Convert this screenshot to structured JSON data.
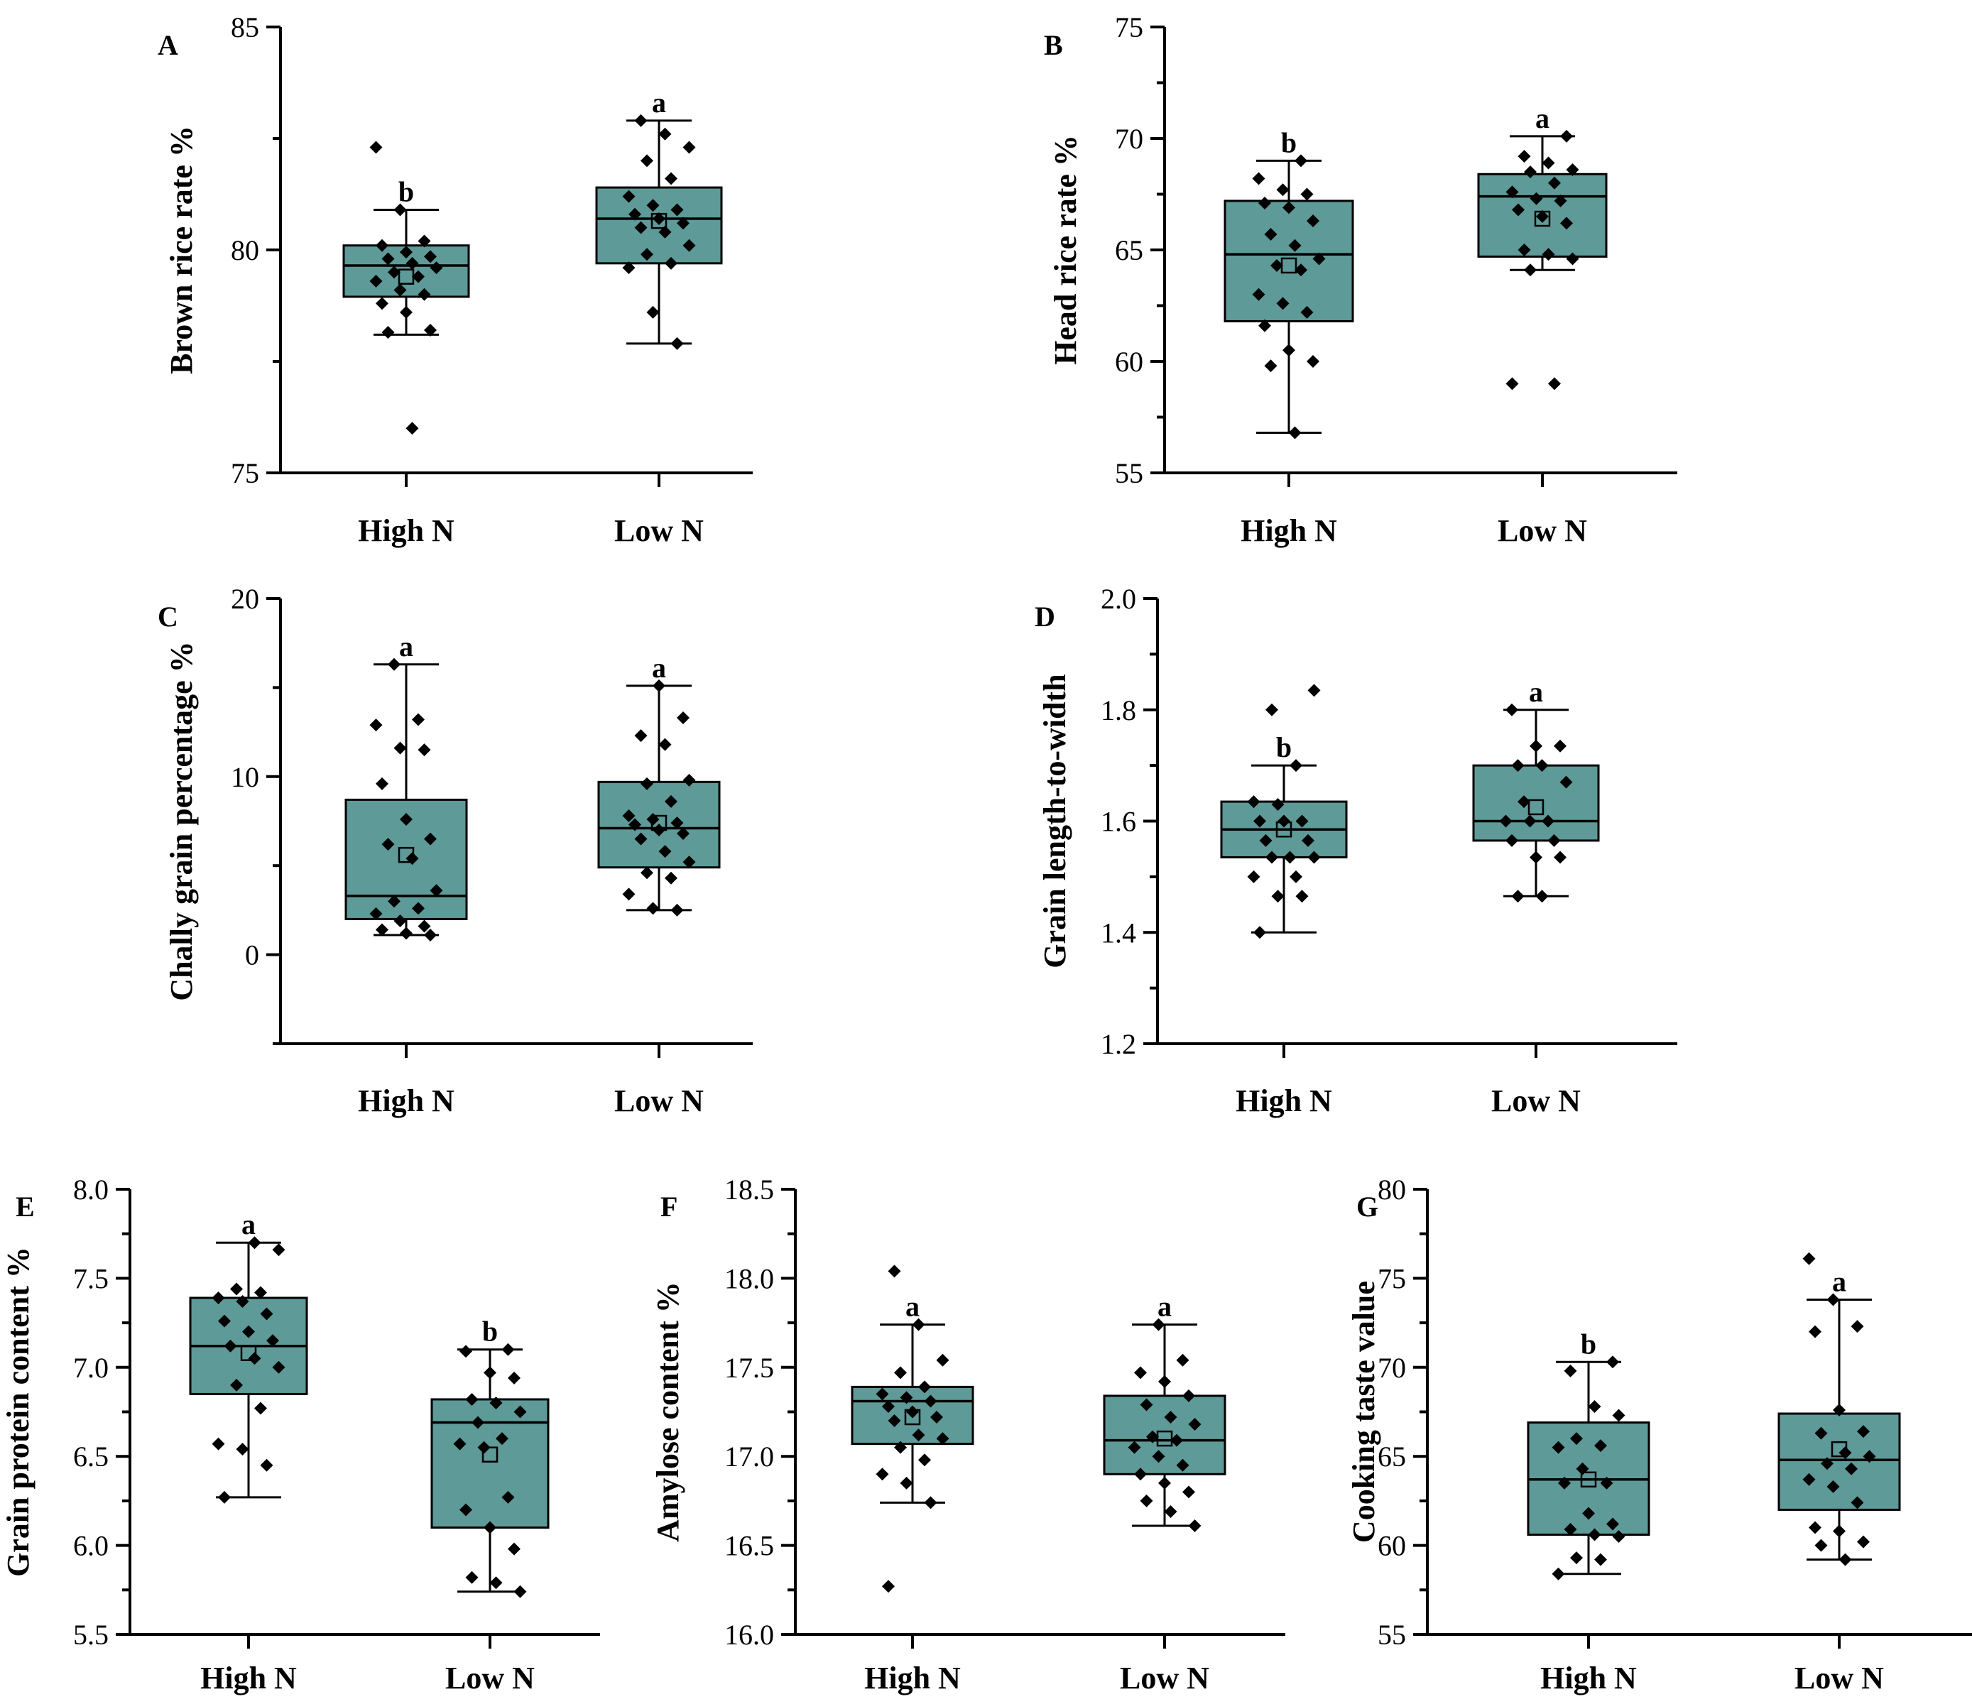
{
  "style": {
    "box_fill": "#5e9a98",
    "line_color": "#000000",
    "point_color": "#000000"
  },
  "chart_data": [
    {
      "type": "box",
      "panel": "A",
      "ylabel": "Brown rice rate  %",
      "ylim": [
        75,
        85
      ],
      "yticks": [
        75,
        80,
        85
      ],
      "ytick_labels": [
        "75",
        "80",
        "85"
      ],
      "minor_ticks": 1,
      "categories": [
        "High N",
        "Low N"
      ],
      "boxes": [
        {
          "name": "High N",
          "whisker_low": 78.1,
          "q1": 78.95,
          "median": 79.65,
          "q3": 80.1,
          "whisker_high": 80.9,
          "mean": 79.4,
          "sig": "b",
          "points": [
            82.3,
            80.9,
            80.2,
            80.1,
            79.95,
            79.85,
            79.8,
            79.7,
            79.6,
            79.5,
            79.4,
            79.3,
            79.1,
            79.0,
            78.8,
            78.6,
            78.2,
            78.15,
            76.0
          ]
        },
        {
          "name": "Low N",
          "whisker_low": 77.9,
          "q1": 79.7,
          "median": 80.7,
          "q3": 81.4,
          "whisker_high": 82.9,
          "mean": 80.65,
          "sig": "a",
          "points": [
            82.9,
            82.6,
            82.3,
            82.0,
            81.6,
            81.2,
            81.0,
            80.9,
            80.8,
            80.7,
            80.6,
            80.5,
            80.4,
            80.1,
            79.9,
            79.7,
            79.6,
            78.6,
            77.9
          ]
        }
      ]
    },
    {
      "type": "box",
      "panel": "B",
      "ylabel": "Head rice rate %",
      "ylim": [
        55,
        75
      ],
      "yticks": [
        55,
        60,
        65,
        70,
        75
      ],
      "ytick_labels": [
        "55",
        "60",
        "65",
        "70",
        "75"
      ],
      "minor_ticks": 1,
      "categories": [
        "High N",
        "Low N"
      ],
      "boxes": [
        {
          "name": "High N",
          "whisker_low": 56.8,
          "q1": 61.8,
          "median": 64.8,
          "q3": 67.2,
          "whisker_high": 69.0,
          "mean": 64.3,
          "sig": "b",
          "points": [
            69.0,
            68.2,
            67.7,
            67.5,
            67.1,
            66.9,
            66.3,
            65.7,
            65.2,
            64.6,
            64.3,
            64.1,
            63.0,
            62.6,
            62.2,
            61.6,
            60.5,
            60.0,
            59.8,
            56.8
          ]
        },
        {
          "name": "Low N",
          "whisker_low": 64.1,
          "q1": 64.7,
          "median": 67.4,
          "q3": 68.4,
          "whisker_high": 70.1,
          "mean": 66.4,
          "sig": "a",
          "points": [
            70.1,
            69.2,
            68.9,
            68.6,
            68.5,
            68.0,
            67.6,
            67.3,
            67.2,
            66.8,
            66.5,
            66.2,
            65.0,
            64.8,
            64.6,
            64.1,
            59.0,
            59.0
          ]
        }
      ]
    },
    {
      "type": "box",
      "panel": "C",
      "ylabel": "Chally grain percentage  %",
      "ylim": [
        -5,
        20
      ],
      "yticks": [
        0,
        10,
        20
      ],
      "ytick_labels": [
        "0",
        "10",
        "20"
      ],
      "minor_ticks": 1,
      "categories": [
        "High N",
        "Low N"
      ],
      "boxes": [
        {
          "name": "High N",
          "whisker_low": 1.1,
          "q1": 2.0,
          "median": 3.3,
          "q3": 8.7,
          "whisker_high": 16.3,
          "mean": 5.6,
          "sig": "a",
          "points": [
            16.3,
            13.2,
            12.9,
            11.6,
            11.5,
            9.6,
            7.6,
            6.5,
            6.2,
            5.4,
            3.6,
            3.0,
            2.6,
            2.3,
            1.9,
            1.6,
            1.4,
            1.2,
            1.1
          ]
        },
        {
          "name": "Low N",
          "whisker_low": 2.5,
          "q1": 4.9,
          "median": 7.1,
          "q3": 9.7,
          "whisker_high": 15.1,
          "mean": 7.4,
          "sig": "a",
          "points": [
            15.1,
            13.3,
            12.3,
            11.8,
            9.8,
            9.6,
            8.6,
            7.8,
            7.6,
            7.4,
            7.3,
            7.0,
            6.8,
            6.5,
            5.8,
            5.2,
            4.6,
            4.3,
            3.4,
            2.6,
            2.5
          ]
        }
      ]
    },
    {
      "type": "box",
      "panel": "D",
      "ylabel": "Grain length-to-width",
      "ylim": [
        1.2,
        2.0
      ],
      "yticks": [
        1.2,
        1.4,
        1.6,
        1.8,
        2.0
      ],
      "ytick_labels": [
        "1.2",
        "1.4",
        "1.6",
        "1.8",
        "2.0"
      ],
      "minor_ticks": 1,
      "categories": [
        "High N",
        "Low N"
      ],
      "boxes": [
        {
          "name": "High N",
          "whisker_low": 1.4,
          "q1": 1.535,
          "median": 1.585,
          "q3": 1.635,
          "whisker_high": 1.7,
          "mean": 1.585,
          "sig": "b",
          "points": [
            1.835,
            1.8,
            1.7,
            1.635,
            1.63,
            1.6,
            1.6,
            1.6,
            1.565,
            1.565,
            1.535,
            1.535,
            1.535,
            1.5,
            1.5,
            1.465,
            1.465,
            1.4
          ]
        },
        {
          "name": "Low N",
          "whisker_low": 1.465,
          "q1": 1.565,
          "median": 1.6,
          "q3": 1.7,
          "whisker_high": 1.8,
          "mean": 1.625,
          "sig": "a",
          "points": [
            1.8,
            1.735,
            1.735,
            1.7,
            1.7,
            1.67,
            1.635,
            1.6,
            1.6,
            1.6,
            1.565,
            1.565,
            1.535,
            1.535,
            1.465,
            1.465
          ]
        }
      ]
    },
    {
      "type": "box",
      "panel": "E",
      "ylabel": "Grain protein content %",
      "ylim": [
        5.5,
        8.0
      ],
      "yticks": [
        5.5,
        6.0,
        6.5,
        7.0,
        7.5,
        8.0
      ],
      "ytick_labels": [
        "5.5",
        "6.0",
        "6.5",
        "7.0",
        "7.5",
        "8.0"
      ],
      "minor_ticks": 1,
      "categories": [
        "High N",
        "Low N"
      ],
      "boxes": [
        {
          "name": "High N",
          "whisker_low": 6.27,
          "q1": 6.85,
          "median": 7.12,
          "q3": 7.39,
          "whisker_high": 7.7,
          "mean": 7.08,
          "sig": "a",
          "points": [
            7.7,
            7.66,
            7.44,
            7.42,
            7.39,
            7.37,
            7.3,
            7.26,
            7.2,
            7.15,
            7.12,
            7.05,
            7.0,
            6.9,
            6.77,
            6.57,
            6.54,
            6.45,
            6.27
          ]
        },
        {
          "name": "Low N",
          "whisker_low": 5.74,
          "q1": 6.1,
          "median": 6.69,
          "q3": 6.82,
          "whisker_high": 7.1,
          "mean": 6.51,
          "sig": "b",
          "points": [
            7.1,
            7.09,
            6.97,
            6.94,
            6.82,
            6.8,
            6.75,
            6.69,
            6.6,
            6.57,
            6.55,
            6.27,
            6.2,
            6.1,
            5.98,
            5.82,
            5.79,
            5.74
          ]
        }
      ]
    },
    {
      "type": "box",
      "panel": "F",
      "ylabel": "Amylose content %",
      "ylim": [
        16.0,
        18.5
      ],
      "yticks": [
        16.0,
        16.5,
        17.0,
        17.5,
        18.0,
        18.5
      ],
      "ytick_labels": [
        "16.0",
        "16.5",
        "17.0",
        "17.5",
        "18.0",
        "18.5"
      ],
      "minor_ticks": 1,
      "categories": [
        "High N",
        "Low N"
      ],
      "boxes": [
        {
          "name": "High N",
          "whisker_low": 16.74,
          "q1": 17.07,
          "median": 17.31,
          "q3": 17.39,
          "whisker_high": 17.74,
          "mean": 17.22,
          "sig": "a",
          "points": [
            18.04,
            17.74,
            17.54,
            17.47,
            17.39,
            17.35,
            17.33,
            17.31,
            17.28,
            17.25,
            17.22,
            17.2,
            17.12,
            17.1,
            17.05,
            16.98,
            16.9,
            16.85,
            16.74,
            16.27
          ]
        },
        {
          "name": "Low N",
          "whisker_low": 16.61,
          "q1": 16.9,
          "median": 17.09,
          "q3": 17.34,
          "whisker_high": 17.74,
          "mean": 17.1,
          "sig": "a",
          "points": [
            17.74,
            17.54,
            17.47,
            17.42,
            17.34,
            17.29,
            17.22,
            17.18,
            17.11,
            17.09,
            17.05,
            17.0,
            16.95,
            16.9,
            16.85,
            16.8,
            16.75,
            16.69,
            16.61
          ]
        }
      ]
    },
    {
      "type": "box",
      "panel": "G",
      "ylabel": "Cooking taste value",
      "ylim": [
        55,
        80
      ],
      "yticks": [
        55,
        60,
        65,
        70,
        75,
        80
      ],
      "ytick_labels": [
        "55",
        "60",
        "65",
        "70",
        "75",
        "80"
      ],
      "minor_ticks": 1,
      "categories": [
        "High N",
        "Low N"
      ],
      "boxes": [
        {
          "name": "High N",
          "whisker_low": 58.4,
          "q1": 60.6,
          "median": 63.7,
          "q3": 66.9,
          "whisker_high": 70.3,
          "mean": 63.7,
          "sig": "b",
          "points": [
            70.3,
            69.8,
            67.8,
            67.3,
            66.0,
            65.6,
            65.5,
            64.3,
            63.5,
            63.5,
            61.8,
            61.2,
            60.9,
            60.6,
            60.5,
            59.3,
            59.2,
            58.4
          ]
        },
        {
          "name": "Low N",
          "whisker_low": 59.2,
          "q1": 62.0,
          "median": 64.8,
          "q3": 67.4,
          "whisker_high": 73.8,
          "mean": 65.4,
          "sig": "a",
          "points": [
            76.1,
            73.8,
            72.3,
            72.0,
            67.6,
            66.4,
            66.3,
            65.2,
            65.0,
            64.6,
            64.3,
            63.7,
            63.3,
            62.4,
            61.0,
            60.8,
            60.2,
            60.0,
            59.2
          ]
        }
      ]
    }
  ]
}
